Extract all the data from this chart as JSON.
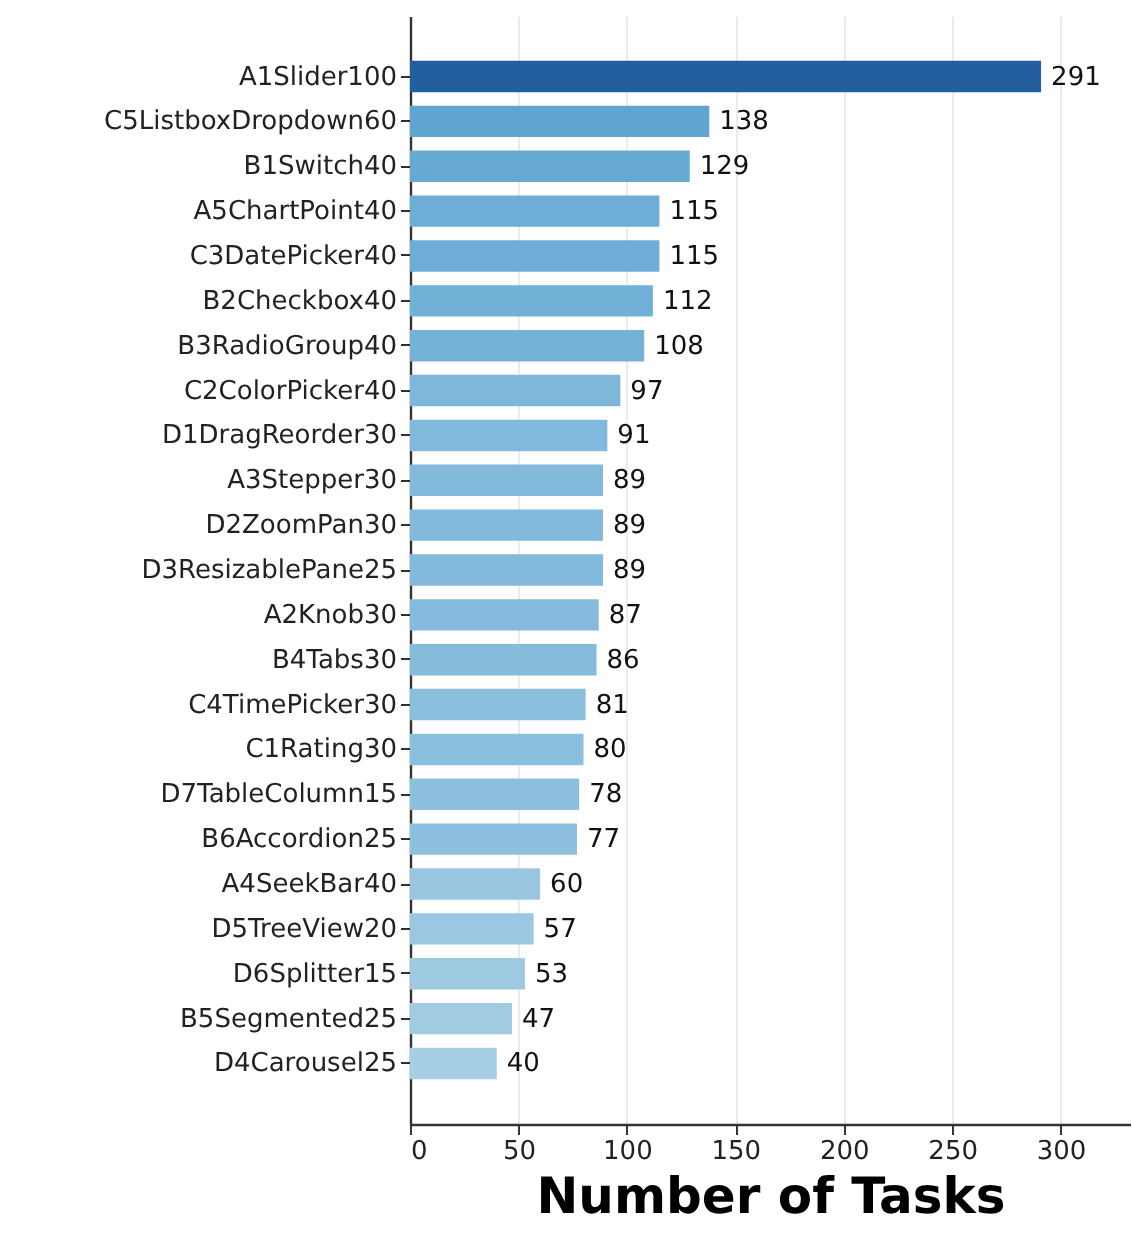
{
  "chart_data": {
    "type": "bar",
    "orientation": "horizontal",
    "xlabel": "Number of Tasks",
    "categories": [
      "A1Slider100",
      "C5ListboxDropdown60",
      "B1Switch40",
      "A5ChartPoint40",
      "C3DatePicker40",
      "B2Checkbox40",
      "B3RadioGroup40",
      "C2ColorPicker40",
      "D1DragReorder30",
      "A3Stepper30",
      "D2ZoomPan30",
      "D3ResizablePane25",
      "A2Knob30",
      "B4Tabs30",
      "C4TimePicker30",
      "C1Rating30",
      "D7TableColumn15",
      "B6Accordion25",
      "A4SeekBar40",
      "D5TreeView20",
      "D6Splitter15",
      "B5Segmented25",
      "D4Carousel25"
    ],
    "values": [
      291,
      138,
      129,
      115,
      115,
      112,
      108,
      97,
      91,
      89,
      89,
      89,
      87,
      86,
      81,
      80,
      78,
      77,
      60,
      57,
      53,
      47,
      40
    ],
    "colors": [
      "#235f9f",
      "#60a5d1",
      "#66a9d3",
      "#6eaed6",
      "#6eaed6",
      "#71b0d7",
      "#74b2d8",
      "#7db7da",
      "#80b9db",
      "#82badb",
      "#82badb",
      "#82badb",
      "#84bbdc",
      "#85bcdc",
      "#89bedd",
      "#8abfdd",
      "#8cc0de",
      "#8dc0de",
      "#98c6e0",
      "#9ac7e1",
      "#9dc9e1",
      "#a1cbe2",
      "#a6cee4"
    ],
    "xlim": [
      0,
      332
    ],
    "xticks": [
      0,
      50,
      100,
      150,
      200,
      250,
      300
    ],
    "grid": "x",
    "data_labels": true
  }
}
